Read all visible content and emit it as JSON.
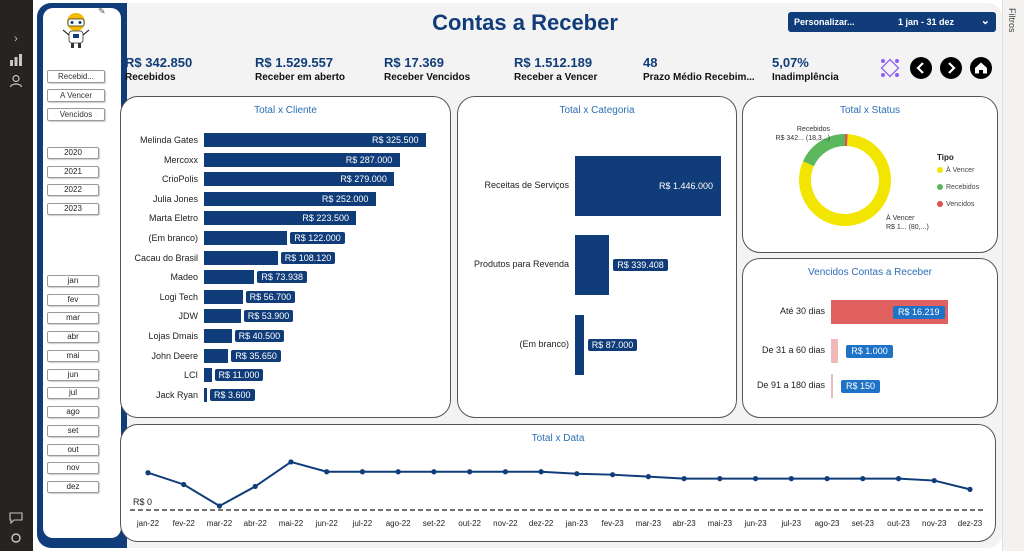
{
  "app": {
    "title": "Contas a Receber",
    "filters_pane_label": "Filtros"
  },
  "date_slicer": {
    "label": "Personalizar...",
    "range": "1 jan - 31 dez"
  },
  "kpis": [
    {
      "value": "R$ 342.850",
      "label": "Recebidos"
    },
    {
      "value": "R$ 1.529.557",
      "label": "Receber em aberto"
    },
    {
      "value": "R$ 17.369",
      "label": "Receber Vencidos"
    },
    {
      "value": "R$ 1.512.189",
      "label": "Receber a Vencer"
    },
    {
      "value": "48",
      "label": "Prazo Médio Recebim..."
    },
    {
      "value": "5,07%",
      "label": "Inadimplência"
    }
  ],
  "sidebar": {
    "status_buttons": [
      "Recebid...",
      "A Vencer",
      "Vencidos"
    ],
    "years": [
      "2020",
      "2021",
      "2022",
      "2023"
    ],
    "months": [
      "jan",
      "fev",
      "mar",
      "abr",
      "mai",
      "jun",
      "jul",
      "ago",
      "set",
      "out",
      "nov",
      "dez"
    ]
  },
  "colors": {
    "navy": "#103c7a",
    "title_blue": "#2b6fb5",
    "yellow": "#f2e600",
    "green": "#5cb85c",
    "red": "#e05050",
    "vencidos_bar": "#e06060",
    "vencidos_label": "#1f73c7"
  },
  "chart_data": [
    {
      "type": "bar",
      "title": "Total x Cliente",
      "orientation": "horizontal",
      "categories": [
        "Melinda Gates",
        "Mercoxx",
        "CrioPolis",
        "Julia Jones",
        "Marta Eletro",
        "(Em branco)",
        "Cacau do Brasil",
        "Madeo",
        "Logi Tech",
        "JDW",
        "Lojas Dmais",
        "John Deere",
        "LCI",
        "Jack Ryan"
      ],
      "values": [
        325500,
        287000,
        279000,
        252000,
        223500,
        122000,
        108120,
        73938,
        56700,
        53900,
        40500,
        35650,
        11000,
        3600
      ],
      "labels": [
        "R$ 325.500",
        "R$ 287.000",
        "R$ 279.000",
        "R$ 252.000",
        "R$ 223.500",
        "R$ 122.000",
        "R$ 108.120",
        "R$ 73.938",
        "R$ 56.700",
        "R$ 53.900",
        "R$ 40.500",
        "R$ 35.650",
        "R$ 11.000",
        "R$ 3.600"
      ]
    },
    {
      "type": "bar",
      "title": "Total x Categoria",
      "orientation": "horizontal",
      "categories": [
        "Receitas de Serviços",
        "Produtos para Revenda",
        "(Em branco)"
      ],
      "values": [
        1446000,
        339408,
        87000
      ],
      "labels": [
        "R$ 1.446.000",
        "R$ 339.408",
        "R$ 87.000"
      ]
    },
    {
      "type": "pie",
      "title": "Total x Status",
      "legend_title": "Tipo",
      "categories": [
        "À Vencer",
        "Recebidos",
        "Vencidos"
      ],
      "values": [
        1512189,
        342850,
        17369
      ],
      "annotations": [
        {
          "category": "Recebidos",
          "text": "R$ 342... (18,3...)"
        },
        {
          "category": "À Vencer",
          "text": "R$ 1... (80,...)"
        }
      ]
    },
    {
      "type": "bar",
      "title": "Vencidos Contas a Receber",
      "orientation": "horizontal",
      "categories": [
        "Até 30 dias",
        "De 31 a 60 dias",
        "De 91 a 180 dias"
      ],
      "values": [
        16219,
        1000,
        150
      ],
      "labels": [
        "R$ 16.219",
        "R$ 1.000",
        "R$ 150"
      ]
    },
    {
      "type": "line",
      "title": "Total x Data",
      "zero_label": "R$ 0",
      "x": [
        "jan-22",
        "fev-22",
        "mar-22",
        "abr-22",
        "mai-22",
        "jun-22",
        "jul-22",
        "ago-22",
        "set-22",
        "out-22",
        "nov-22",
        "dez-22",
        "jan-23",
        "fev-23",
        "mar-23",
        "abr-23",
        "mai-23",
        "jun-23",
        "jul-23",
        "ago-23",
        "set-23",
        "out-23",
        "nov-23",
        "dez-23"
      ],
      "values": [
        175000,
        115000,
        5000,
        105000,
        230000,
        180000,
        180000,
        180000,
        180000,
        180000,
        180000,
        180000,
        170000,
        165000,
        155000,
        145000,
        145000,
        145000,
        145000,
        145000,
        145000,
        145000,
        135000,
        90000
      ]
    }
  ]
}
